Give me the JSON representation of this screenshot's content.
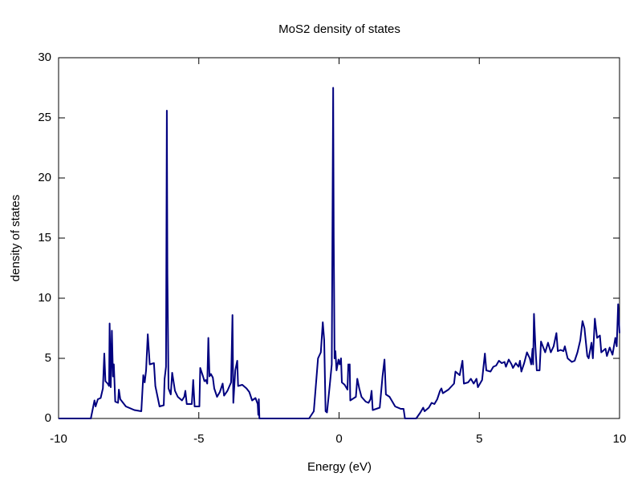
{
  "chart_data": {
    "type": "line",
    "title": "MoS2 density of states",
    "xlabel": "Energy (eV)",
    "ylabel": "density of states",
    "x": [
      -10,
      -8.85,
      -8.72,
      -8.68,
      -8.6,
      -8.5,
      -8.42,
      -8.37,
      -8.33,
      -8.25,
      -8.2,
      -8.18,
      -8.14,
      -8.1,
      -8.06,
      -8.03,
      -7.98,
      -7.88,
      -7.85,
      -7.8,
      -7.6,
      -7.3,
      -7.05,
      -6.98,
      -6.93,
      -6.88,
      -6.82,
      -6.75,
      -6.6,
      -6.55,
      -6.4,
      -6.25,
      -6.22,
      -6.17,
      -6.14,
      -6.12,
      -6.08,
      -6.0,
      -5.95,
      -5.85,
      -5.75,
      -5.6,
      -5.52,
      -5.48,
      -5.43,
      -5.25,
      -5.2,
      -5.15,
      -4.98,
      -4.95,
      -4.85,
      -4.8,
      -4.75,
      -4.7,
      -4.66,
      -4.62,
      -4.57,
      -4.5,
      -4.45,
      -4.35,
      -4.25,
      -4.15,
      -4.1,
      -3.98,
      -3.85,
      -3.8,
      -3.77,
      -3.7,
      -3.63,
      -3.6,
      -3.45,
      -3.3,
      -3.2,
      -3.1,
      -2.98,
      -2.9,
      -2.88,
      -2.86,
      -2.84,
      -1.07,
      -0.9,
      -0.75,
      -0.65,
      -0.58,
      -0.53,
      -0.48,
      -0.43,
      -0.33,
      -0.26,
      -0.21,
      -0.19,
      -0.16,
      -0.13,
      -0.09,
      -0.02,
      0.02,
      0.07,
      0.1,
      0.2,
      0.3,
      0.33,
      0.36,
      0.38,
      0.4,
      0.6,
      0.65,
      0.72,
      0.8,
      0.95,
      1.05,
      1.12,
      1.16,
      1.2,
      1.45,
      1.55,
      1.62,
      1.67,
      1.8,
      2.0,
      2.2,
      2.3,
      2.35,
      2.75,
      2.9,
      3.0,
      3.05,
      3.2,
      3.3,
      3.4,
      3.5,
      3.6,
      3.65,
      3.7,
      3.9,
      4.1,
      4.15,
      4.3,
      4.4,
      4.45,
      4.6,
      4.7,
      4.8,
      4.9,
      4.95,
      5.1,
      5.2,
      5.25,
      5.4,
      5.5,
      5.6,
      5.7,
      5.8,
      5.9,
      5.95,
      6.05,
      6.15,
      6.2,
      6.3,
      6.4,
      6.45,
      6.5,
      6.6,
      6.7,
      6.8,
      6.85,
      6.9,
      6.92,
      6.95,
      7.0,
      7.05,
      7.15,
      7.2,
      7.35,
      7.45,
      7.55,
      7.65,
      7.75,
      7.8,
      7.9,
      8.0,
      8.05,
      8.15,
      8.3,
      8.4,
      8.5,
      8.6,
      8.68,
      8.75,
      8.85,
      8.9,
      9.0,
      9.05,
      9.12,
      9.2,
      9.3,
      9.35,
      9.5,
      9.55,
      9.65,
      9.75,
      9.85,
      9.9,
      9.95,
      10
    ],
    "series": [
      {
        "color": "#00007f",
        "values": [
          0,
          0,
          1.5,
          1.0,
          1.6,
          1.7,
          2.5,
          5.4,
          3.1,
          2.9,
          2.7,
          7.9,
          2.6,
          7.3,
          3.5,
          4.5,
          1.4,
          1.3,
          2.4,
          1.6,
          1.0,
          0.7,
          0.6,
          3.6,
          3.0,
          4.0,
          7.0,
          4.5,
          4.6,
          2.7,
          1.0,
          1.1,
          3.3,
          4.3,
          25.6,
          12,
          2.5,
          2.0,
          3.8,
          2.3,
          1.8,
          1.5,
          1.8,
          2.3,
          1.2,
          1.2,
          3.2,
          1.0,
          1.0,
          4.2,
          3.5,
          3.1,
          3.2,
          2.9,
          6.7,
          3.5,
          3.7,
          3.4,
          2.5,
          1.8,
          2.2,
          2.9,
          1.9,
          2.3,
          3.0,
          8.6,
          1.3,
          4.0,
          4.8,
          2.7,
          2.8,
          2.5,
          2.2,
          1.5,
          1.7,
          1.2,
          0.3,
          1.6,
          0,
          0,
          0.6,
          5.0,
          5.5,
          8.0,
          6.5,
          0.6,
          0.5,
          2.8,
          4.5,
          27.5,
          15,
          5.0,
          5.6,
          4.0,
          4.9,
          4.5,
          5.0,
          3.0,
          2.8,
          2.4,
          4.5,
          4.0,
          4.5,
          1.5,
          1.8,
          3.3,
          2.5,
          1.8,
          1.4,
          1.3,
          1.6,
          2.3,
          0.7,
          0.9,
          3.5,
          4.9,
          2.0,
          1.8,
          1.0,
          0.8,
          0.8,
          0,
          0,
          0.5,
          0.9,
          0.6,
          0.9,
          1.3,
          1.2,
          1.6,
          2.3,
          2.5,
          2.1,
          2.4,
          2.9,
          3.9,
          3.6,
          4.8,
          2.9,
          3.0,
          3.3,
          2.9,
          3.3,
          2.6,
          3.2,
          5.4,
          4.0,
          3.9,
          4.3,
          4.4,
          4.8,
          4.6,
          4.7,
          4.3,
          4.9,
          4.5,
          4.2,
          4.6,
          4.3,
          4.8,
          3.9,
          4.6,
          5.5,
          5.0,
          4.5,
          5.8,
          4.5,
          8.7,
          6.0,
          4.0,
          4.0,
          6.4,
          5.5,
          6.3,
          5.5,
          6.0,
          7.1,
          5.6,
          5.7,
          5.6,
          6.0,
          5.0,
          4.7,
          4.8,
          5.5,
          6.5,
          8.1,
          7.5,
          5.2,
          5.0,
          6.3,
          5.0,
          8.3,
          6.7,
          6.9,
          5.5,
          5.8,
          5.2,
          5.9,
          5.3,
          6.7,
          6.0,
          9.5,
          7.1
        ]
      }
    ],
    "xlim": [
      -10,
      10
    ],
    "xticks": [
      -10,
      -5,
      0,
      5,
      10
    ],
    "ylim": [
      0,
      30
    ],
    "yticks": [
      0,
      5,
      10,
      15,
      20,
      25,
      30
    ],
    "grid": false
  }
}
